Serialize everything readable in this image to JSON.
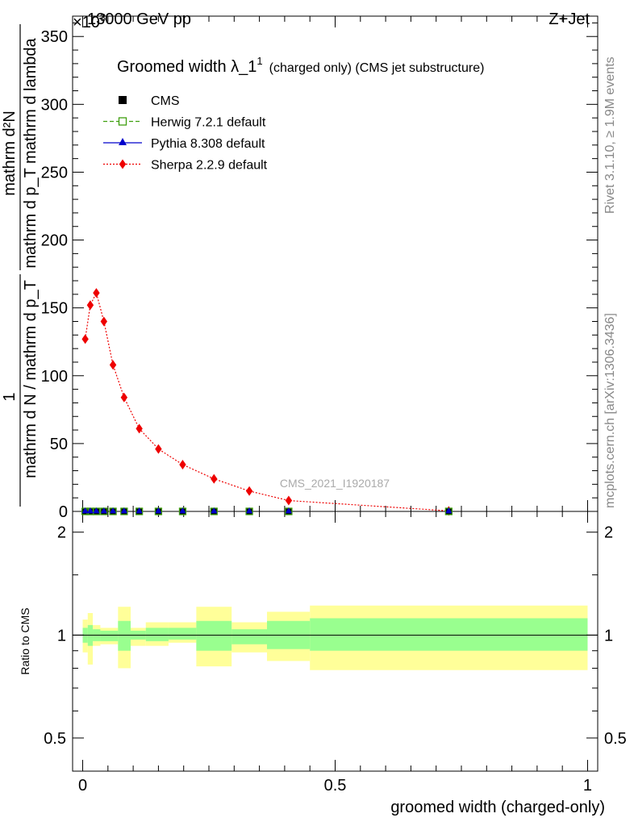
{
  "header": {
    "energy": "13000 GeV pp",
    "process": "Z+Jet",
    "exponent": "10",
    "exponent_power": "3",
    "exponent_prefix": "×"
  },
  "side_labels": {
    "rivet": "Rivet 3.1.10, ≥ 1.9M events",
    "site": "mcplots.cern.ch [arXiv:1306.3436]"
  },
  "analysis_id": "CMS_2021_I1920187",
  "main_plot": {
    "title": "Groomed width λ_1",
    "title_sup": "1",
    "title_small": "(charged only) (CMS jet substructure)",
    "ylabel_numerator_left": "1",
    "ylabel_denominator_left": "mathrm d N / mathrm d p_T",
    "ylabel_numerator_right": "mathrm d²N",
    "ylabel_denominator_right": "mathrm d p_T mathrm d lambda",
    "ylim": [
      0,
      365
    ],
    "yticks": [
      "0",
      "50",
      "100",
      "150",
      "200",
      "250",
      "300",
      "350"
    ],
    "legend": [
      {
        "label": "CMS",
        "color": "#000000",
        "marker": "square-filled",
        "line": "none"
      },
      {
        "label": "Herwig 7.2.1 default",
        "color": "#3f9f0f",
        "marker": "square-open",
        "line": "dashed"
      },
      {
        "label": "Pythia 8.308 default",
        "color": "#0000cc",
        "marker": "triangle",
        "line": "solid"
      },
      {
        "label": "Sherpa 2.2.9 default",
        "color": "#ee0000",
        "marker": "diamond",
        "line": "dotted"
      }
    ]
  },
  "ratio_plot": {
    "ylabel": "Ratio to CMS",
    "ylim": [
      0.4,
      2.3
    ],
    "yticks": [
      "0.5",
      "1",
      "2"
    ],
    "ytick_values": [
      0.5,
      1,
      2
    ]
  },
  "xaxis": {
    "label": "groomed width (charged-only)",
    "xlim": [
      -0.02,
      1.02
    ],
    "xticks": [
      "0",
      "0.5",
      "1"
    ],
    "xtick_values": [
      0,
      0.5,
      1
    ]
  },
  "chart_data": {
    "type": "line",
    "x": [
      0.005,
      0.015,
      0.027,
      0.042,
      0.06,
      0.082,
      0.112,
      0.15,
      0.198,
      0.26,
      0.33,
      0.408,
      0.725
    ],
    "series": [
      {
        "name": "Sherpa 2.2.9 default",
        "values": [
          127,
          152,
          161,
          140,
          108,
          84,
          61,
          46,
          34.5,
          24,
          15,
          8,
          0.4
        ]
      },
      {
        "name": "CMS",
        "values": [
          0,
          0,
          0,
          0,
          0,
          0,
          0,
          0,
          0,
          0,
          0,
          0,
          0
        ]
      },
      {
        "name": "Herwig 7.2.1 default",
        "values": [
          0,
          0,
          0,
          0,
          0,
          0,
          0,
          0,
          0,
          0,
          0,
          0,
          0
        ]
      },
      {
        "name": "Pythia 8.308 default",
        "values": [
          0,
          0,
          0,
          0,
          0,
          0,
          0,
          0,
          0,
          0,
          0,
          0,
          0
        ]
      }
    ],
    "ratio_bands": [
      {
        "x0": 0.0,
        "x1": 0.01,
        "green": [
          0.95,
          1.05
        ],
        "yellow": [
          0.89,
          1.11
        ]
      },
      {
        "x0": 0.01,
        "x1": 0.02,
        "green": [
          0.93,
          1.07
        ],
        "yellow": [
          0.82,
          1.16
        ]
      },
      {
        "x0": 0.02,
        "x1": 0.035,
        "green": [
          0.96,
          1.04
        ],
        "yellow": [
          0.93,
          1.07
        ]
      },
      {
        "x0": 0.035,
        "x1": 0.07,
        "green": [
          0.96,
          1.03
        ],
        "yellow": [
          0.94,
          1.05
        ]
      },
      {
        "x0": 0.07,
        "x1": 0.095,
        "green": [
          0.9,
          1.1
        ],
        "yellow": [
          0.8,
          1.21
        ]
      },
      {
        "x0": 0.095,
        "x1": 0.125,
        "green": [
          0.97,
          1.03
        ],
        "yellow": [
          0.93,
          1.05
        ]
      },
      {
        "x0": 0.125,
        "x1": 0.17,
        "green": [
          0.96,
          1.05
        ],
        "yellow": [
          0.93,
          1.09
        ]
      },
      {
        "x0": 0.17,
        "x1": 0.225,
        "green": [
          0.97,
          1.05
        ],
        "yellow": [
          0.95,
          1.09
        ]
      },
      {
        "x0": 0.225,
        "x1": 0.295,
        "green": [
          0.9,
          1.1
        ],
        "yellow": [
          0.81,
          1.21
        ]
      },
      {
        "x0": 0.295,
        "x1": 0.365,
        "green": [
          0.94,
          1.04
        ],
        "yellow": [
          0.89,
          1.09
        ]
      },
      {
        "x0": 0.365,
        "x1": 0.45,
        "green": [
          0.91,
          1.1
        ],
        "yellow": [
          0.84,
          1.17
        ]
      },
      {
        "x0": 0.45,
        "x1": 1.0,
        "green": [
          0.9,
          1.12
        ],
        "yellow": [
          0.79,
          1.22
        ]
      }
    ],
    "xlabel": "groomed width (charged-only)",
    "ylabel": "mathrm d²N",
    "xlim": [
      -0.02,
      1.02
    ],
    "ylim": [
      0,
      365
    ]
  }
}
